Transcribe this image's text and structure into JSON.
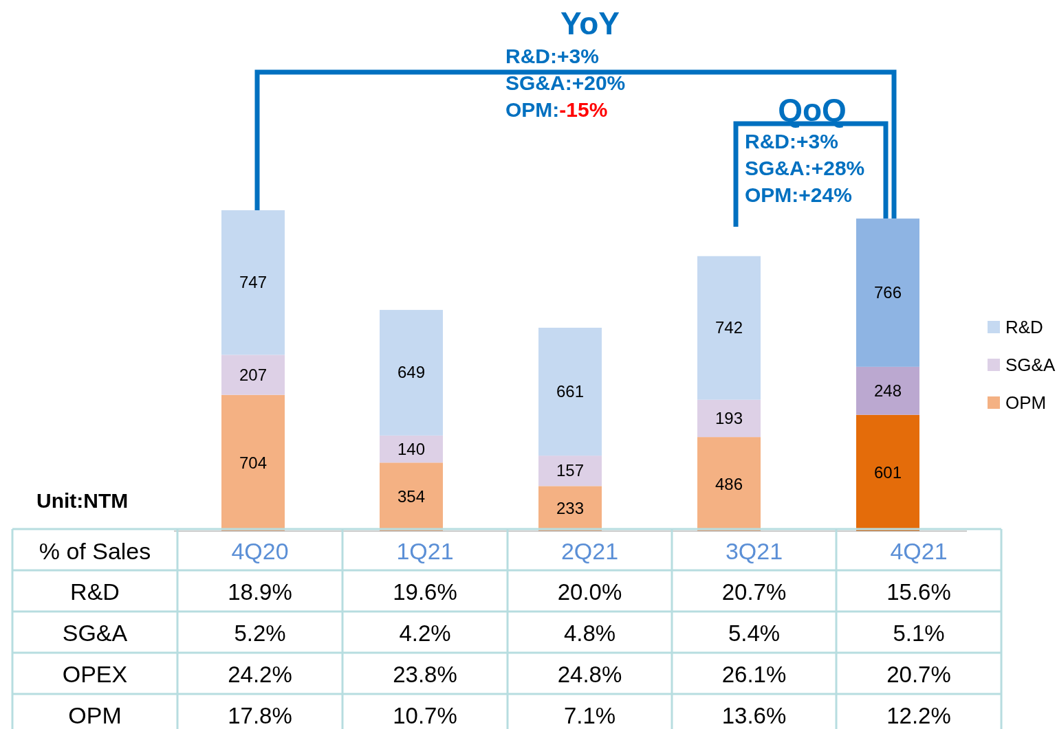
{
  "chart_data": [
    {
      "type": "bar",
      "stacked": true,
      "data_labels": true,
      "legend": "right",
      "categories": [
        null,
        null,
        null,
        null,
        null
      ],
      "series": [
        {
          "name": "OPM",
          "color": "#f4b183",
          "colors": [
            "#f4b183",
            "#f4b183",
            "#f4b183",
            "#f4b183",
            "#e46c0a"
          ],
          "values": [
            704,
            354,
            233,
            486,
            601
          ]
        },
        {
          "name": "SG&A",
          "color": "#ddd0e6",
          "colors": [
            "#ddd0e6",
            "#ddd0e6",
            "#ddd0e6",
            "#ddd0e6",
            "#bba8d0"
          ],
          "values": [
            207,
            140,
            157,
            193,
            248
          ]
        },
        {
          "name": "R&D",
          "color": "#c5d9f1",
          "colors": [
            "#c5d9f1",
            "#c5d9f1",
            "#c5d9f1",
            "#c5d9f1",
            "#8eb4e3"
          ],
          "values": [
            747,
            649,
            661,
            742,
            766
          ]
        }
      ],
      "annotations": [
        "YoY",
        "R&D:+3%",
        "SG&A:+20%",
        "OPM:-15%",
        "QoQ",
        "R&D:+3%",
        "SG&A:+28%",
        "OPM:+24%",
        "Unit:NTM"
      ]
    },
    {
      "type": "heatmap",
      "title": "% of Sales",
      "categories": [
        "4Q20",
        "1Q21",
        "2Q21",
        "3Q21",
        "4Q21"
      ],
      "y_categories": [
        "R&D",
        "SG&A",
        "OPEX",
        "OPM"
      ],
      "cells": [
        [
          18.9,
          19.6,
          20.0,
          20.7,
          15.6
        ],
        [
          5.2,
          4.2,
          4.8,
          5.4,
          5.1
        ],
        [
          24.2,
          23.8,
          24.8,
          26.1,
          20.7
        ],
        [
          17.8,
          10.7,
          7.1,
          13.6,
          12.2
        ]
      ],
      "cell_labels": [
        [
          "18.9%",
          "19.6%",
          "20.0%",
          "20.7%",
          "15.6%"
        ],
        [
          "5.2%",
          "4.2%",
          "4.8%",
          "5.4%",
          "5.1%"
        ],
        [
          "24.2%",
          "23.8%",
          "24.8%",
          "26.1%",
          "20.7%"
        ],
        [
          "17.8%",
          "10.7%",
          "7.1%",
          "13.6%",
          "12.2%"
        ]
      ]
    }
  ]
}
